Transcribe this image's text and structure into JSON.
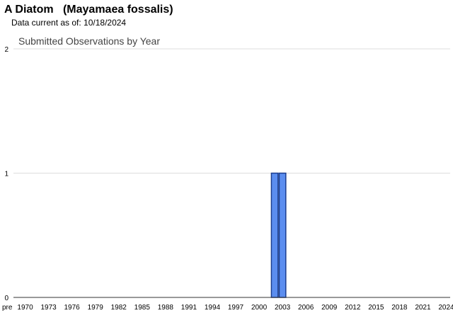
{
  "header": {
    "title": "A Diatom   (Mayamaea fossalis)",
    "data_current": "Data current as of: 10/18/2024"
  },
  "chart_data": {
    "type": "bar",
    "title": "Submitted Observations by Year",
    "xlabel": "",
    "ylabel": "",
    "ylim": [
      0,
      2
    ],
    "yticks": [
      "0",
      "1",
      "2"
    ],
    "grid": true,
    "legend": "none",
    "bar_color": "#5b8def",
    "bar_edge_color": "#1a3d8f",
    "categories": [
      "pre",
      "1970",
      "1971",
      "1972",
      "1973",
      "1974",
      "1975",
      "1976",
      "1977",
      "1978",
      "1979",
      "1980",
      "1981",
      "1982",
      "1983",
      "1984",
      "1985",
      "1986",
      "1987",
      "1988",
      "1989",
      "1990",
      "1991",
      "1992",
      "1993",
      "1994",
      "1995",
      "1996",
      "1997",
      "1998",
      "1999",
      "2000",
      "2001",
      "2002",
      "2003",
      "2004",
      "2005",
      "2006",
      "2007",
      "2008",
      "2009",
      "2010",
      "2011",
      "2012",
      "2013",
      "2014",
      "2015",
      "2016",
      "2017",
      "2018",
      "2019",
      "2020",
      "2021",
      "2022",
      "2023",
      "2024"
    ],
    "tick_labels": [
      "pre",
      "1970",
      "1973",
      "1976",
      "1979",
      "1982",
      "1985",
      "1988",
      "1991",
      "1994",
      "1997",
      "2000",
      "2003",
      "2006",
      "2009",
      "2012",
      "2015",
      "2018",
      "2021",
      "2024"
    ],
    "values": [
      0,
      0,
      0,
      0,
      0,
      0,
      0,
      0,
      0,
      0,
      0,
      0,
      0,
      0,
      0,
      0,
      0,
      0,
      0,
      0,
      0,
      0,
      0,
      0,
      0,
      0,
      0,
      0,
      0,
      0,
      0,
      0,
      0,
      1,
      1,
      0,
      0,
      0,
      0,
      0,
      0,
      0,
      0,
      0,
      0,
      0,
      0,
      0,
      0,
      0,
      0,
      0,
      0,
      0,
      0,
      0
    ]
  }
}
